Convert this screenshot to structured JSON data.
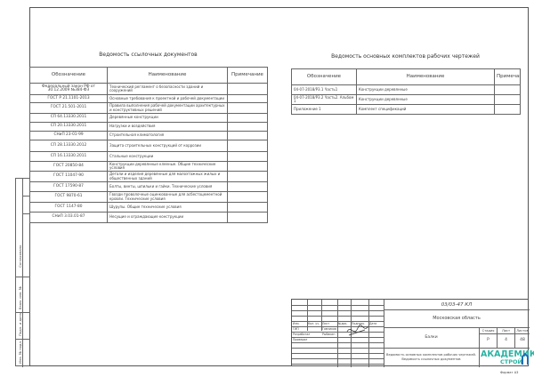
{
  "ref_docs": {
    "title": "Ведомость ссылочных документов",
    "headers": [
      "Обозначение",
      "Наименование",
      "Примечание"
    ],
    "rows": [
      [
        "Федеральный закон РФ от 30.12.2009 №384-ФЗ",
        "Технический регламент о безопасности зданий и сооружений",
        ""
      ],
      [
        "ГОСТ Р 21.1101-2013",
        "Основные требования к проектной и рабочей документации",
        ""
      ],
      [
        "ГОСТ 21.501-2011",
        "Правила выполнения рабочей документации архитектурных и конструктивных решений",
        ""
      ],
      [
        "СП 64.13330.2011",
        "Деревянные конструкции",
        ""
      ],
      [
        "СП 20.13330.2011",
        "Нагрузки и воздействия",
        ""
      ],
      [
        "СНиП 23-01-99",
        "Строительная климатология",
        ""
      ],
      [
        "СП 28.13330.2012",
        "Защита строительных конструкций от коррозии",
        ""
      ],
      [
        "СП 16.13330.2011",
        "Стальные конструкции",
        ""
      ],
      [
        "ГОСТ 20850-84",
        "Конструкции деревянные клееные. Общие технические условия",
        ""
      ],
      [
        "ГОСТ 11047-90",
        "Детали и изделия деревянные для малоэтажных жилых и общественных зданий",
        ""
      ],
      [
        "ГОСТ 17590-87",
        "Болты, винты, шпильки и гайки. Технические условия",
        ""
      ],
      [
        "ГОСТ 9870-61",
        "Гвозди проволочные оцинкованные для асбестоцементной кровли. Технические условия",
        ""
      ],
      [
        "ГОСТ 1147-80",
        "Шурупы. Общие технические условия",
        ""
      ],
      [
        "СНиП 3.03.01-87",
        "Несущие и ограждающие конструкции",
        ""
      ]
    ]
  },
  "main_sets": {
    "title": "Ведомость основных комплектов рабочих чертежей",
    "headers": [
      "Обозначение",
      "Наименование",
      "Примечание"
    ],
    "rows": [
      [
        "04-07-2018/Р3.1 Часть1",
        "Конструкции деревянные",
        ""
      ],
      [
        "04-07-2018/Р3.2 Часть2. Альбом 1",
        "Конструкции деревянные",
        ""
      ],
      [
        "Приложение 1",
        "Комплект спецификаций",
        ""
      ]
    ]
  },
  "stamp": {
    "code": "03/03-47 КЛ",
    "location": "Московская область",
    "cols": [
      "Изм.",
      "Кол. уч.",
      "Лист",
      "№док.",
      "Подпись",
      "Дата"
    ],
    "roles": [
      "ГИП",
      "Разработал",
      "Проверил"
    ],
    "names": [
      "Гомзиков",
      "Рыбакин",
      ""
    ],
    "stage_label": "Стадия",
    "sheet_label": "Лист",
    "sheets_label": "Листов",
    "stage": "Р",
    "sheet": "4",
    "sheets": "48",
    "object": "Балки",
    "sheet_title_1": "Ведомость основных комплектов рабочих чертежей.",
    "sheet_title_2": "Ведомость ссылочных документов",
    "logo_main": "АКАДЕМИК",
    "logo_sub": "СТРОЙ",
    "format": "Формат А3",
    "accent": "#2bb3a3"
  },
  "side": {
    "agreed": "Согласовано",
    "replace": "Взам. инв. №",
    "signdate": "Подп. и дата",
    "inv": "Инв. № подл."
  }
}
